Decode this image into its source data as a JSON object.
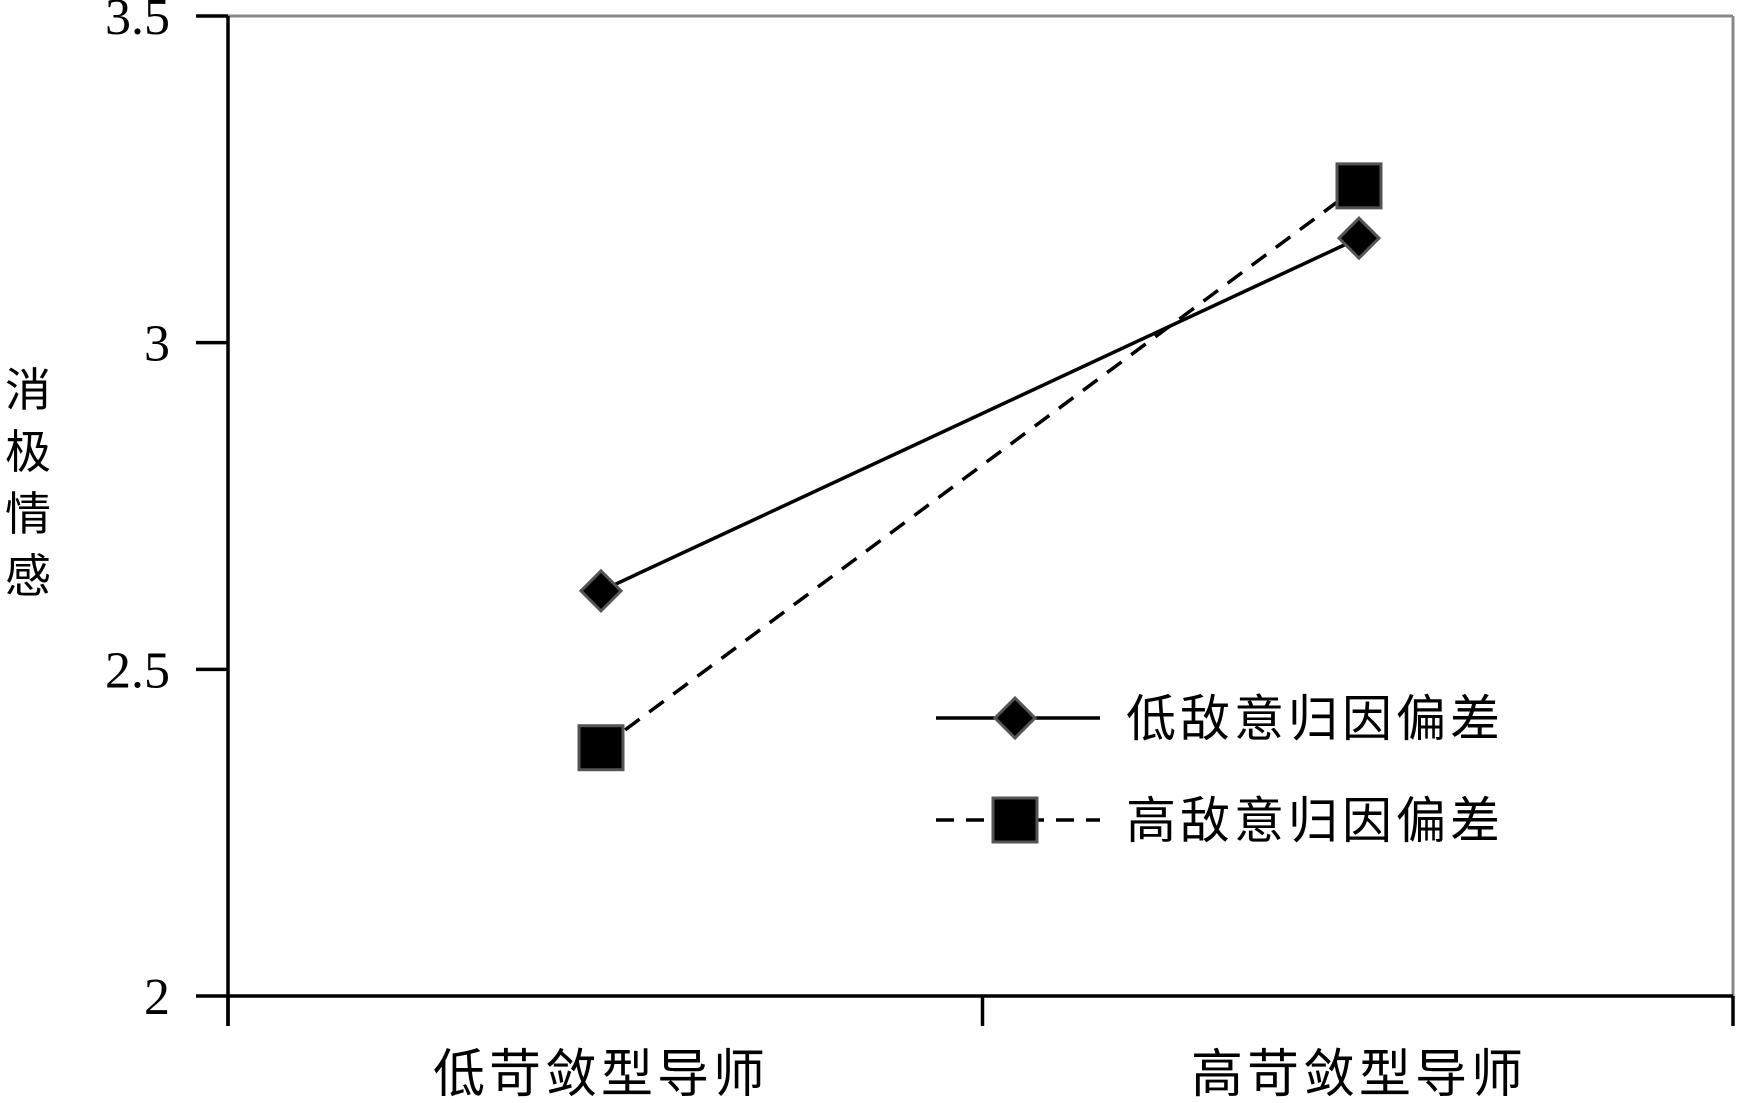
{
  "chart_data": {
    "type": "line",
    "title": "",
    "xlabel": "",
    "ylabel": "消极情感",
    "categories": [
      "低苛敛型导师",
      "高苛敛型导师"
    ],
    "ylim": [
      2,
      3.5
    ],
    "yticks": [
      "2",
      "2.5",
      "3",
      "3.5"
    ],
    "grid": false,
    "legend_position": "bottom-right",
    "series": [
      {
        "name": "低敌意归因偏差",
        "values": [
          2.62,
          3.16
        ],
        "line_style": "solid",
        "marker": "diamond",
        "color": "#000000"
      },
      {
        "name": "高敌意归因偏差",
        "values": [
          2.38,
          3.24
        ],
        "line_style": "dashed",
        "marker": "square",
        "color": "#000000"
      }
    ]
  }
}
